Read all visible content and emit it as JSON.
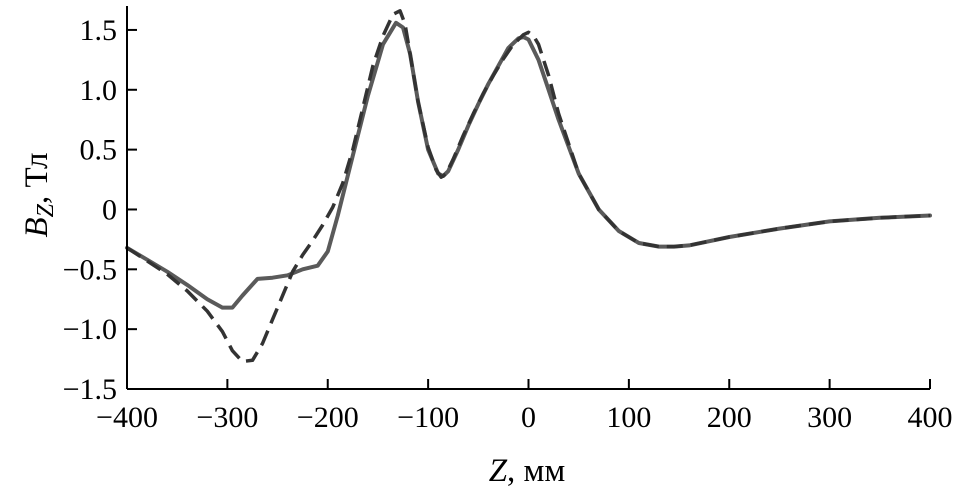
{
  "chart_data": {
    "type": "line",
    "xlabel_main": "Z",
    "xlabel_rest": ", мм",
    "ylabel_main": "B",
    "ylabel_sub": "Z",
    "ylabel_rest": ", Тл",
    "xlim": [
      -400,
      400
    ],
    "ylim": [
      -1.5,
      1.7
    ],
    "x_ticks": [
      -400,
      -300,
      -200,
      -100,
      0,
      100,
      200,
      300,
      400
    ],
    "x_tick_labels": [
      "−400",
      "−300",
      "−200",
      "−100",
      "0",
      "100",
      "200",
      "300",
      "400"
    ],
    "y_ticks": [
      -1.5,
      -1.0,
      -0.5,
      0,
      0.5,
      1.0,
      1.5
    ],
    "y_tick_labels": [
      "−1.5",
      "−1.0",
      "−0.5",
      "0",
      "0.5",
      "1.0",
      "1.5"
    ],
    "grid": false,
    "series": [
      {
        "style": "solid",
        "color": "#5a5a5a",
        "x": [
          -400,
          -380,
          -360,
          -340,
          -320,
          -305,
          -295,
          -285,
          -270,
          -255,
          -240,
          -225,
          -210,
          -200,
          -190,
          -175,
          -160,
          -145,
          -132,
          -125,
          -118,
          -110,
          -100,
          -90,
          -85,
          -80,
          -70,
          -60,
          -50,
          -40,
          -30,
          -20,
          -10,
          -5,
          0,
          10,
          20,
          30,
          50,
          70,
          90,
          110,
          130,
          145,
          160,
          200,
          250,
          300,
          350,
          400
        ],
        "y": [
          -0.32,
          -0.42,
          -0.52,
          -0.63,
          -0.75,
          -0.82,
          -0.82,
          -0.72,
          -0.58,
          -0.57,
          -0.55,
          -0.5,
          -0.47,
          -0.35,
          -0.05,
          0.45,
          0.95,
          1.38,
          1.56,
          1.52,
          1.3,
          0.9,
          0.5,
          0.3,
          0.28,
          0.32,
          0.5,
          0.7,
          0.88,
          1.05,
          1.2,
          1.35,
          1.43,
          1.44,
          1.42,
          1.25,
          1.0,
          0.75,
          0.3,
          0.0,
          -0.18,
          -0.28,
          -0.31,
          -0.31,
          -0.3,
          -0.23,
          -0.16,
          -0.1,
          -0.07,
          -0.05
        ]
      },
      {
        "style": "dashed",
        "color": "#333333",
        "x": [
          -400,
          -380,
          -360,
          -340,
          -320,
          -305,
          -295,
          -285,
          -275,
          -265,
          -255,
          -245,
          -235,
          -225,
          -215,
          -205,
          -195,
          -185,
          -175,
          -165,
          -155,
          -145,
          -135,
          -128,
          -123,
          -118,
          -110,
          -100,
          -92,
          -87,
          -82,
          -75,
          -65,
          -55,
          -45,
          -35,
          -25,
          -15,
          -5,
          0,
          5,
          10,
          20,
          30,
          50,
          70,
          90,
          110,
          130,
          145,
          160,
          200,
          250,
          300,
          350,
          400
        ],
        "y": [
          -0.32,
          -0.43,
          -0.54,
          -0.68,
          -0.85,
          -1.02,
          -1.18,
          -1.27,
          -1.26,
          -1.12,
          -0.92,
          -0.72,
          -0.52,
          -0.38,
          -0.26,
          -0.13,
          0.02,
          0.22,
          0.5,
          0.85,
          1.2,
          1.45,
          1.63,
          1.66,
          1.55,
          1.3,
          0.9,
          0.52,
          0.33,
          0.27,
          0.3,
          0.42,
          0.62,
          0.8,
          0.97,
          1.12,
          1.26,
          1.38,
          1.46,
          1.48,
          1.45,
          1.38,
          1.12,
          0.8,
          0.3,
          0.0,
          -0.18,
          -0.28,
          -0.31,
          -0.31,
          -0.3,
          -0.23,
          -0.16,
          -0.1,
          -0.07,
          -0.05
        ]
      }
    ]
  }
}
